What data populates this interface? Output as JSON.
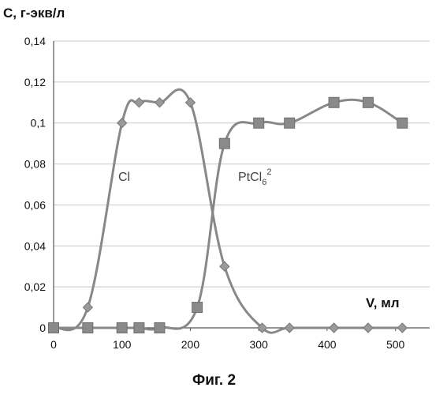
{
  "chart_data": {
    "type": "line",
    "ylabel": "С, г-экв/л",
    "xlabel": "V, мл",
    "caption": "Фиг. 2",
    "xlim": [
      0,
      550
    ],
    "ylim": [
      0,
      0.14
    ],
    "x_ticks": [
      0,
      100,
      200,
      300,
      400,
      500
    ],
    "x_tick_labels": [
      "0",
      "100",
      "200",
      "300",
      "400",
      "500"
    ],
    "y_ticks": [
      0,
      0.02,
      0.04,
      0.06,
      0.08,
      0.1,
      0.12,
      0.14
    ],
    "y_tick_labels": [
      "0",
      "0,02",
      "0,04",
      "0,06",
      "0,08",
      "0,1",
      "0,12",
      "0,14"
    ],
    "grid": "horizontal",
    "series": [
      {
        "name": "Cl",
        "marker": "diamond",
        "color": "#888888",
        "x": [
          0,
          50,
          100,
          125,
          155,
          200,
          250,
          305,
          345,
          410,
          460,
          510
        ],
        "y": [
          0,
          0.01,
          0.1,
          0.11,
          0.11,
          0.11,
          0.03,
          0,
          0,
          0,
          0,
          0
        ]
      },
      {
        "name": "PtCl6",
        "marker": "square",
        "color": "#888888",
        "x": [
          0,
          50,
          100,
          125,
          155,
          210,
          250,
          300,
          345,
          410,
          460,
          510
        ],
        "y": [
          0,
          0,
          0,
          0,
          0,
          0.01,
          0.09,
          0.1,
          0.1,
          0.11,
          0.11,
          0.1
        ]
      }
    ],
    "series_labels": [
      {
        "text": "Cl",
        "series": "Cl"
      },
      {
        "text": "PtCl",
        "sub": "6",
        "sup": "2",
        "series": "PtCl6"
      }
    ]
  }
}
